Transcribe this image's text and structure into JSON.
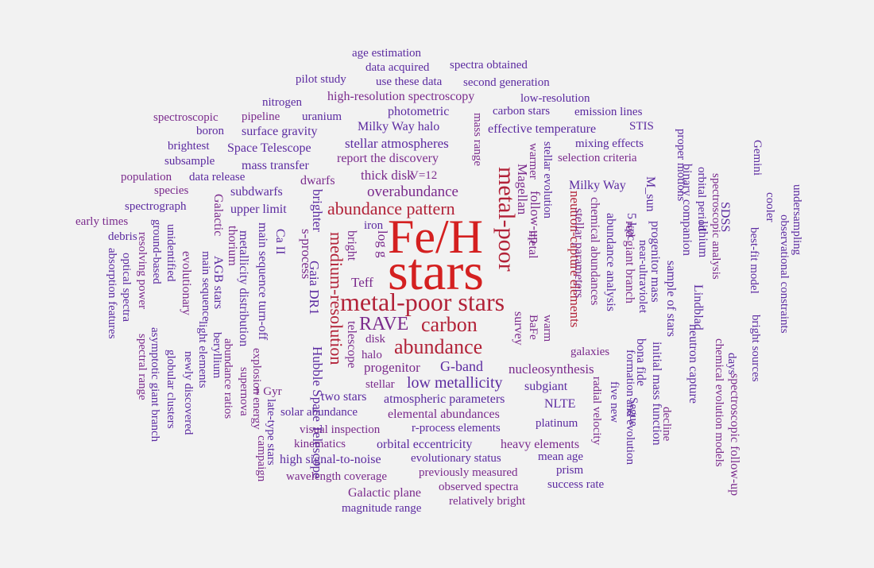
{
  "palette": {
    "red": "#d42020",
    "crimson": "#b22238",
    "purple": "#7a2a8c",
    "violet": "#5b2aa0",
    "blue": "#2f2ba8",
    "navy": "#2a2a9a"
  },
  "words": [
    {
      "text": "Fe/H",
      "color": "red"
    },
    {
      "text": "stars",
      "color": "red"
    },
    {
      "text": "metal-poor stars",
      "color": "crimson"
    },
    {
      "text": "metal-poor",
      "color": "crimson"
    },
    {
      "text": "abundance",
      "color": "crimson"
    },
    {
      "text": "carbon",
      "color": "crimson"
    },
    {
      "text": "RAVE",
      "color": "purple"
    },
    {
      "text": "abundance pattern",
      "color": "crimson"
    },
    {
      "text": "medium-resolution",
      "color": "crimson"
    },
    {
      "text": "overabundance",
      "color": "purple"
    },
    {
      "text": "low metallicity",
      "color": "violet"
    },
    {
      "text": "G-band",
      "color": "violet"
    },
    {
      "text": "nucleosynthesis",
      "color": "purple"
    },
    {
      "text": "neutron-capture elements",
      "color": "crimson"
    },
    {
      "text": "Teff",
      "color": "purple"
    },
    {
      "text": "progenitor",
      "color": "purple"
    },
    {
      "text": "log g",
      "color": "purple"
    },
    {
      "text": "follow-up",
      "color": "purple"
    },
    {
      "text": "Magellan",
      "color": "purple"
    },
    {
      "text": "stellar atmospheres",
      "color": "violet"
    },
    {
      "text": "thick disk",
      "color": "purple"
    },
    {
      "text": "Milky Way halo",
      "color": "violet"
    },
    {
      "text": "photometric",
      "color": "violet"
    },
    {
      "text": "carbon stars",
      "color": "violet"
    },
    {
      "text": "high-resolution spectroscopy",
      "color": "purple"
    },
    {
      "text": "effective temperature",
      "color": "violet"
    },
    {
      "text": "report the discovery",
      "color": "purple"
    },
    {
      "text": "subdwarfs",
      "color": "violet"
    },
    {
      "text": "upper limit",
      "color": "violet"
    },
    {
      "text": "dwarfs",
      "color": "purple"
    },
    {
      "text": "V=12",
      "color": "purple"
    },
    {
      "text": "Space Telescope",
      "color": "violet"
    },
    {
      "text": "surface gravity",
      "color": "violet"
    },
    {
      "text": "mass transfer",
      "color": "violet"
    },
    {
      "text": "uranium",
      "color": "violet"
    },
    {
      "text": "pipeline",
      "color": "purple"
    },
    {
      "text": "nitrogen",
      "color": "violet"
    },
    {
      "text": "boron",
      "color": "violet"
    },
    {
      "text": "spectroscopic",
      "color": "purple"
    },
    {
      "text": "brightest",
      "color": "violet"
    },
    {
      "text": "subsample",
      "color": "violet"
    },
    {
      "text": "population",
      "color": "purple"
    },
    {
      "text": "data release",
      "color": "violet"
    },
    {
      "text": "species",
      "color": "purple"
    },
    {
      "text": "spectrograph",
      "color": "violet"
    },
    {
      "text": "early times",
      "color": "purple"
    },
    {
      "text": "debris",
      "color": "violet"
    },
    {
      "text": "age estimation",
      "color": "violet"
    },
    {
      "text": "data acquired",
      "color": "violet"
    },
    {
      "text": "spectra obtained",
      "color": "violet"
    },
    {
      "text": "pilot study",
      "color": "violet"
    },
    {
      "text": "use these data",
      "color": "violet"
    },
    {
      "text": "second generation",
      "color": "violet"
    },
    {
      "text": "low-resolution",
      "color": "violet"
    },
    {
      "text": "emission lines",
      "color": "violet"
    },
    {
      "text": "STIS",
      "color": "violet"
    },
    {
      "text": "mixing effects",
      "color": "violet"
    },
    {
      "text": "selection criteria",
      "color": "purple"
    },
    {
      "text": "Milky Way",
      "color": "violet"
    },
    {
      "text": "iron",
      "color": "violet"
    },
    {
      "text": "bright",
      "color": "purple"
    },
    {
      "text": "metal",
      "color": "purple"
    },
    {
      "text": "disk",
      "color": "purple"
    },
    {
      "text": "halo",
      "color": "purple"
    },
    {
      "text": "stellar",
      "color": "purple"
    },
    {
      "text": "telescope",
      "color": "purple"
    },
    {
      "text": "survey",
      "color": "purple"
    },
    {
      "text": "BaFe",
      "color": "purple"
    },
    {
      "text": "warm",
      "color": "purple"
    },
    {
      "text": "galaxies",
      "color": "purple"
    },
    {
      "text": "subgiant",
      "color": "violet"
    },
    {
      "text": "NLTE",
      "color": "violet"
    },
    {
      "text": "platinum",
      "color": "violet"
    },
    {
      "text": "two stars",
      "color": "violet"
    },
    {
      "text": "atmospheric parameters",
      "color": "violet"
    },
    {
      "text": "elemental abundances",
      "color": "purple"
    },
    {
      "text": "solar abundance",
      "color": "violet"
    },
    {
      "text": "1 Gyr",
      "color": "purple"
    },
    {
      "text": "visual inspection",
      "color": "purple"
    },
    {
      "text": "r-process elements",
      "color": "violet"
    },
    {
      "text": "kinematics",
      "color": "purple"
    },
    {
      "text": "orbital eccentricity",
      "color": "violet"
    },
    {
      "text": "heavy elements",
      "color": "purple"
    },
    {
      "text": "high signal-to-noise",
      "color": "violet"
    },
    {
      "text": "evolutionary status",
      "color": "violet"
    },
    {
      "text": "mean age",
      "color": "violet"
    },
    {
      "text": "prism",
      "color": "violet"
    },
    {
      "text": "wavelength coverage",
      "color": "purple"
    },
    {
      "text": "previously measured",
      "color": "purple"
    },
    {
      "text": "success rate",
      "color": "violet"
    },
    {
      "text": "observed spectra",
      "color": "purple"
    },
    {
      "text": "Galactic plane",
      "color": "purple"
    },
    {
      "text": "relatively bright",
      "color": "purple"
    },
    {
      "text": "magnitude range",
      "color": "violet"
    },
    {
      "text": "mass range",
      "color": "purple"
    },
    {
      "text": "warmer",
      "color": "purple"
    },
    {
      "text": "stellar evolution",
      "color": "violet"
    },
    {
      "text": "stellar parameters",
      "color": "purple"
    },
    {
      "text": "chemical abundances",
      "color": "purple"
    },
    {
      "text": "abundance analysis",
      "color": "violet"
    },
    {
      "text": "5 kpc",
      "color": "violet"
    },
    {
      "text": "red giant branch",
      "color": "purple"
    },
    {
      "text": "near-ultraviolet",
      "color": "violet"
    },
    {
      "text": "M_sun",
      "color": "violet"
    },
    {
      "text": "progenitor mass",
      "color": "violet"
    },
    {
      "text": "bona fide",
      "color": "violet"
    },
    {
      "text": "initial mass function",
      "color": "violet"
    },
    {
      "text": "decline",
      "color": "purple"
    },
    {
      "text": "proper motions",
      "color": "violet"
    },
    {
      "text": "sample of stars",
      "color": "violet"
    },
    {
      "text": "binary companion",
      "color": "violet"
    },
    {
      "text": "Lindblad",
      "color": "violet"
    },
    {
      "text": "orbital period",
      "color": "violet"
    },
    {
      "text": "lithium",
      "color": "violet"
    },
    {
      "text": "neutron capture",
      "color": "violet"
    },
    {
      "text": "spectroscopic analysis",
      "color": "purple"
    },
    {
      "text": "chemical evolution models",
      "color": "purple"
    },
    {
      "text": "days",
      "color": "violet"
    },
    {
      "text": "SDSS",
      "color": "violet"
    },
    {
      "text": "spectroscopic follow-up",
      "color": "purple"
    },
    {
      "text": "Gemini",
      "color": "violet"
    },
    {
      "text": "best-fit model",
      "color": "violet"
    },
    {
      "text": "bright sources",
      "color": "violet"
    },
    {
      "text": "cooler",
      "color": "violet"
    },
    {
      "text": "observational constraints",
      "color": "violet"
    },
    {
      "text": "undersampling",
      "color": "violet"
    },
    {
      "text": "formation and evolution",
      "color": "violet"
    },
    {
      "text": "Segue",
      "color": "violet"
    },
    {
      "text": "five new",
      "color": "violet"
    },
    {
      "text": "radial velocity",
      "color": "purple"
    },
    {
      "text": "brighter",
      "color": "violet"
    },
    {
      "text": "Gaia DR1",
      "color": "violet"
    },
    {
      "text": "s-process",
      "color": "purple"
    },
    {
      "text": "Hubble Space Telescope",
      "color": "violet"
    },
    {
      "text": "Ca II",
      "color": "violet"
    },
    {
      "text": "main sequence turn-off",
      "color": "violet"
    },
    {
      "text": "metallicity distribution",
      "color": "violet"
    },
    {
      "text": "explosion energy",
      "color": "purple"
    },
    {
      "text": "late-type stars",
      "color": "violet"
    },
    {
      "text": "thorium",
      "color": "purple"
    },
    {
      "text": "abundance ratios",
      "color": "purple"
    },
    {
      "text": "supernova",
      "color": "purple"
    },
    {
      "text": "campaign",
      "color": "purple"
    },
    {
      "text": "Galactic",
      "color": "purple"
    },
    {
      "text": "AGB stars",
      "color": "violet"
    },
    {
      "text": "beryllium",
      "color": "violet"
    },
    {
      "text": "main sequence",
      "color": "violet"
    },
    {
      "text": "light elements",
      "color": "violet"
    },
    {
      "text": "evolutionary",
      "color": "purple"
    },
    {
      "text": "newly discovered",
      "color": "violet"
    },
    {
      "text": "unidentified",
      "color": "violet"
    },
    {
      "text": "globular clusters",
      "color": "violet"
    },
    {
      "text": "ground-based",
      "color": "violet"
    },
    {
      "text": "asymptotic giant branch",
      "color": "violet"
    },
    {
      "text": "resolving power",
      "color": "purple"
    },
    {
      "text": "spectral range",
      "color": "purple"
    },
    {
      "text": "optical spectra",
      "color": "violet"
    },
    {
      "text": "absorption features",
      "color": "violet"
    }
  ]
}
